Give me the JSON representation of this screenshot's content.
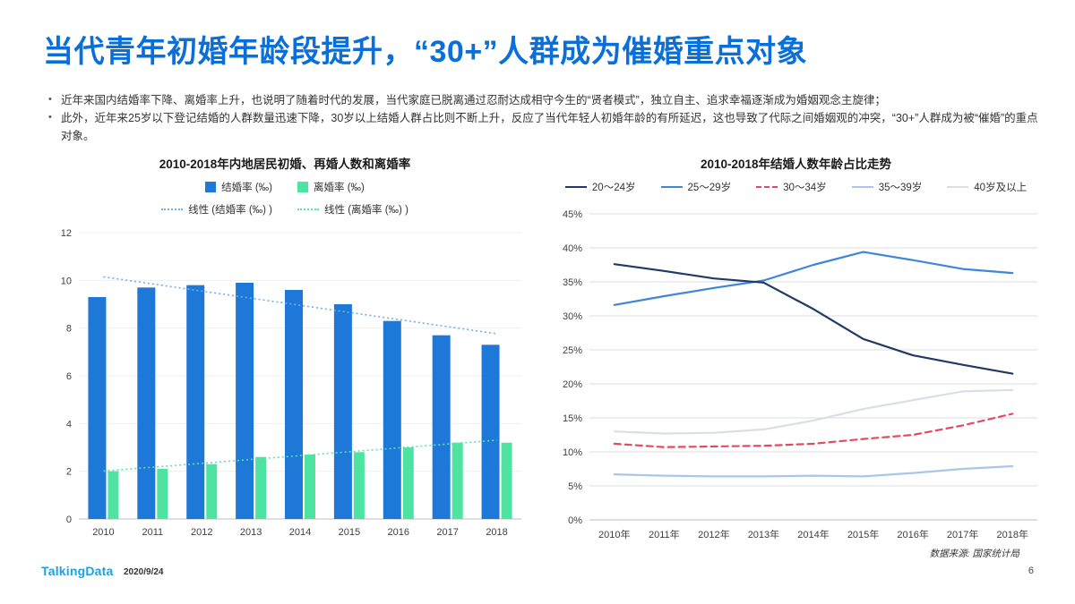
{
  "title": "当代青年初婚年龄段提升，“30+”人群成为催婚重点对象",
  "bullets": [
    "近年来国内结婚率下降、离婚率上升，也说明了随着时代的发展，当代家庭已脱离通过忍耐达成相守今生的“贤者模式”，独立自主、追求幸福逐渐成为婚姻观念主旋律；",
    "此外，近年来25岁以下登记结婚的人群数量迅速下降，30岁以上结婚人群占比则不断上升，反应了当代年轻人初婚年龄的有所延迟，这也导致了代际之间婚姻观的冲突，“30+”人群成为被“催婚”的重点对象。"
  ],
  "footer": {
    "logo": "TalkingData",
    "date": "2020/9/24",
    "source": "数据来源: 国家统计局",
    "page": "6"
  },
  "colors": {
    "title_blue": "#0a6fd8",
    "bar_blue": "#1e78d7",
    "bar_green": "#4ee3a1"
  },
  "chart_data": [
    {
      "type": "bar",
      "title": "2010-2018年内地居民初婚、再婚人数和离婚率",
      "categories": [
        "2010",
        "2011",
        "2012",
        "2013",
        "2014",
        "2015",
        "2016",
        "2017",
        "2018"
      ],
      "ylim": [
        0,
        12
      ],
      "ytick": 2,
      "grid": true,
      "legend_position": "top",
      "series": [
        {
          "name": "结婚率 (‰)",
          "type": "bar",
          "swatch": "square",
          "color": "#1e78d7",
          "values": [
            9.3,
            9.7,
            9.8,
            9.9,
            9.6,
            9.0,
            8.3,
            7.7,
            7.3
          ]
        },
        {
          "name": "离婚率 (‰)",
          "type": "bar",
          "swatch": "square",
          "color": "#4ee3a1",
          "values": [
            2.0,
            2.1,
            2.3,
            2.6,
            2.7,
            2.8,
            3.0,
            3.2,
            3.2
          ]
        },
        {
          "name": "线性 (结婚率 (‰) )",
          "type": "trend",
          "swatch": "dotted",
          "of": 0,
          "color": "#6fb0e8"
        },
        {
          "name": "线性 (离婚率 (‰) )",
          "type": "trend",
          "swatch": "dotted",
          "of": 1,
          "color": "#5fe0b0"
        }
      ]
    },
    {
      "type": "line",
      "title": "2010-2018年结婚人数年龄占比走势",
      "categories": [
        "2010年",
        "2011年",
        "2012年",
        "2013年",
        "2014年",
        "2015年",
        "2016年",
        "2017年",
        "2018年"
      ],
      "ylim": [
        0,
        45
      ],
      "ytick": 5,
      "grid": true,
      "legend_position": "top",
      "series": [
        {
          "name": "20～24岁",
          "type": "line",
          "swatch": "line",
          "color": "#1f3a64",
          "values": [
            37.6,
            36.6,
            35.5,
            34.9,
            31.0,
            26.6,
            24.2,
            22.8,
            21.5
          ]
        },
        {
          "name": "25～29岁",
          "type": "line",
          "swatch": "line",
          "color": "#3e86d9",
          "values": [
            31.6,
            32.9,
            34.1,
            35.2,
            37.5,
            39.4,
            38.2,
            36.9,
            36.3
          ]
        },
        {
          "name": "30～34岁",
          "type": "line",
          "swatch": "line",
          "dash": true,
          "color": "#e24a62",
          "values": [
            11.2,
            10.7,
            10.8,
            10.9,
            11.2,
            11.9,
            12.5,
            13.9,
            15.6
          ]
        },
        {
          "name": "35～39岁",
          "type": "line",
          "swatch": "line",
          "color": "#aac6ea",
          "values": [
            6.7,
            6.5,
            6.4,
            6.4,
            6.5,
            6.4,
            6.9,
            7.5,
            7.9
          ]
        },
        {
          "name": "40岁及以上",
          "type": "line",
          "swatch": "line",
          "color": "#d9dee8",
          "values": [
            13.0,
            12.7,
            12.8,
            13.3,
            14.6,
            16.3,
            17.6,
            18.9,
            19.1
          ]
        }
      ]
    }
  ]
}
